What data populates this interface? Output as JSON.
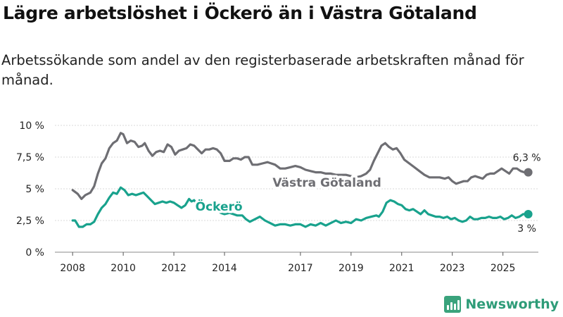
{
  "title": "Lägre arbetslöshet i Öckerö än i Västra Götaland",
  "subtitle": "Arbetssökande som andel av den registerbaserade arbetskraften månad för månad.",
  "brand": "Newsworthy",
  "chart_data": {
    "type": "line",
    "y_ticks": [
      {
        "value": 0,
        "label": "0 %"
      },
      {
        "value": 2.5,
        "label": "2,5 %"
      },
      {
        "value": 5,
        "label": "5 %"
      },
      {
        "value": 7.5,
        "label": "7,5 %"
      },
      {
        "value": 10,
        "label": "10 %"
      }
    ],
    "x_ticks": [
      {
        "value": 2008,
        "label": "2008"
      },
      {
        "value": 2010,
        "label": "2010"
      },
      {
        "value": 2012,
        "label": "2012"
      },
      {
        "value": 2014,
        "label": "2014"
      },
      {
        "value": 2017,
        "label": "2017"
      },
      {
        "value": 2019,
        "label": "2019"
      },
      {
        "value": 2021,
        "label": "2021"
      },
      {
        "value": 2023,
        "label": "2023"
      },
      {
        "value": 2025,
        "label": "2025"
      }
    ],
    "xlim": [
      2007.3,
      2026.4
    ],
    "ylim": [
      0,
      10
    ],
    "series": [
      {
        "name": "Västra Götaland",
        "color": "#6e6e73",
        "end_label": "6,3 %",
        "points": [
          [
            2008.0,
            4.9
          ],
          [
            2008.2,
            4.6
          ],
          [
            2008.35,
            4.2
          ],
          [
            2008.5,
            4.5
          ],
          [
            2008.7,
            4.7
          ],
          [
            2008.85,
            5.2
          ],
          [
            2009.0,
            6.2
          ],
          [
            2009.15,
            7.0
          ],
          [
            2009.3,
            7.4
          ],
          [
            2009.45,
            8.2
          ],
          [
            2009.6,
            8.6
          ],
          [
            2009.75,
            8.8
          ],
          [
            2009.9,
            9.4
          ],
          [
            2010.0,
            9.3
          ],
          [
            2010.15,
            8.6
          ],
          [
            2010.3,
            8.8
          ],
          [
            2010.45,
            8.7
          ],
          [
            2010.6,
            8.3
          ],
          [
            2010.75,
            8.4
          ],
          [
            2010.85,
            8.6
          ],
          [
            2011.0,
            8.0
          ],
          [
            2011.15,
            7.6
          ],
          [
            2011.3,
            7.9
          ],
          [
            2011.45,
            8.0
          ],
          [
            2011.6,
            7.9
          ],
          [
            2011.75,
            8.5
          ],
          [
            2011.9,
            8.3
          ],
          [
            2012.05,
            7.7
          ],
          [
            2012.2,
            8.0
          ],
          [
            2012.35,
            8.1
          ],
          [
            2012.5,
            8.2
          ],
          [
            2012.65,
            8.5
          ],
          [
            2012.8,
            8.4
          ],
          [
            2012.95,
            8.1
          ],
          [
            2013.1,
            7.8
          ],
          [
            2013.25,
            8.1
          ],
          [
            2013.4,
            8.1
          ],
          [
            2013.55,
            8.2
          ],
          [
            2013.7,
            8.1
          ],
          [
            2013.85,
            7.8
          ],
          [
            2014.0,
            7.2
          ],
          [
            2014.2,
            7.2
          ],
          [
            2014.35,
            7.4
          ],
          [
            2014.5,
            7.4
          ],
          [
            2014.65,
            7.3
          ],
          [
            2014.8,
            7.5
          ],
          [
            2014.95,
            7.5
          ],
          [
            2015.1,
            6.9
          ],
          [
            2015.3,
            6.9
          ],
          [
            2015.5,
            7.0
          ],
          [
            2015.7,
            7.1
          ],
          [
            2015.85,
            7.0
          ],
          [
            2016.0,
            6.9
          ],
          [
            2016.2,
            6.6
          ],
          [
            2016.4,
            6.6
          ],
          [
            2016.6,
            6.7
          ],
          [
            2016.8,
            6.8
          ],
          [
            2017.0,
            6.7
          ],
          [
            2017.2,
            6.5
          ],
          [
            2017.4,
            6.4
          ],
          [
            2017.6,
            6.3
          ],
          [
            2017.8,
            6.3
          ],
          [
            2018.0,
            6.2
          ],
          [
            2018.2,
            6.2
          ],
          [
            2018.4,
            6.1
          ],
          [
            2018.6,
            6.1
          ],
          [
            2018.8,
            6.1
          ],
          [
            2019.0,
            6.0
          ],
          [
            2019.2,
            5.9
          ],
          [
            2019.4,
            6.0
          ],
          [
            2019.6,
            6.2
          ],
          [
            2019.75,
            6.5
          ],
          [
            2019.9,
            7.2
          ],
          [
            2020.05,
            7.8
          ],
          [
            2020.2,
            8.4
          ],
          [
            2020.35,
            8.6
          ],
          [
            2020.5,
            8.3
          ],
          [
            2020.65,
            8.1
          ],
          [
            2020.8,
            8.2
          ],
          [
            2020.95,
            7.8
          ],
          [
            2021.1,
            7.3
          ],
          [
            2021.3,
            7.0
          ],
          [
            2021.5,
            6.7
          ],
          [
            2021.7,
            6.4
          ],
          [
            2021.9,
            6.1
          ],
          [
            2022.1,
            5.9
          ],
          [
            2022.3,
            5.9
          ],
          [
            2022.5,
            5.9
          ],
          [
            2022.7,
            5.8
          ],
          [
            2022.85,
            5.9
          ],
          [
            2023.0,
            5.6
          ],
          [
            2023.15,
            5.4
          ],
          [
            2023.3,
            5.5
          ],
          [
            2023.45,
            5.6
          ],
          [
            2023.6,
            5.6
          ],
          [
            2023.75,
            5.9
          ],
          [
            2023.9,
            6.0
          ],
          [
            2024.05,
            5.9
          ],
          [
            2024.2,
            5.8
          ],
          [
            2024.35,
            6.1
          ],
          [
            2024.5,
            6.2
          ],
          [
            2024.65,
            6.2
          ],
          [
            2024.8,
            6.4
          ],
          [
            2024.95,
            6.6
          ],
          [
            2025.1,
            6.4
          ],
          [
            2025.25,
            6.2
          ],
          [
            2025.4,
            6.6
          ],
          [
            2025.55,
            6.6
          ],
          [
            2025.7,
            6.4
          ],
          [
            2025.85,
            6.3
          ],
          [
            2026.0,
            6.3
          ]
        ]
      },
      {
        "name": "Öckerö",
        "color": "#19a28d",
        "end_label": "3 %",
        "points": [
          [
            2008.0,
            2.5
          ],
          [
            2008.1,
            2.5
          ],
          [
            2008.25,
            2.0
          ],
          [
            2008.4,
            2.0
          ],
          [
            2008.55,
            2.2
          ],
          [
            2008.7,
            2.2
          ],
          [
            2008.85,
            2.4
          ],
          [
            2009.0,
            3.0
          ],
          [
            2009.15,
            3.5
          ],
          [
            2009.3,
            3.8
          ],
          [
            2009.45,
            4.3
          ],
          [
            2009.6,
            4.7
          ],
          [
            2009.75,
            4.6
          ],
          [
            2009.9,
            5.1
          ],
          [
            2010.05,
            4.9
          ],
          [
            2010.2,
            4.5
          ],
          [
            2010.35,
            4.6
          ],
          [
            2010.5,
            4.5
          ],
          [
            2010.65,
            4.6
          ],
          [
            2010.8,
            4.7
          ],
          [
            2010.95,
            4.4
          ],
          [
            2011.1,
            4.1
          ],
          [
            2011.25,
            3.8
          ],
          [
            2011.4,
            3.9
          ],
          [
            2011.55,
            4.0
          ],
          [
            2011.7,
            3.9
          ],
          [
            2011.85,
            4.0
          ],
          [
            2012.0,
            3.9
          ],
          [
            2012.15,
            3.7
          ],
          [
            2012.3,
            3.5
          ],
          [
            2012.45,
            3.7
          ],
          [
            2012.6,
            4.2
          ],
          [
            2012.7,
            4.0
          ],
          [
            2012.8,
            4.1
          ],
          [
            2012.95,
            3.7
          ],
          [
            2013.1,
            3.5
          ],
          [
            2013.25,
            3.6
          ],
          [
            2013.4,
            3.5
          ],
          [
            2013.55,
            3.4
          ],
          [
            2013.7,
            3.3
          ],
          [
            2013.85,
            3.1
          ],
          [
            2014.0,
            3.0
          ],
          [
            2014.2,
            3.1
          ],
          [
            2014.35,
            3.0
          ],
          [
            2014.5,
            2.9
          ],
          [
            2014.7,
            2.9
          ],
          [
            2014.85,
            2.6
          ],
          [
            2015.0,
            2.4
          ],
          [
            2015.2,
            2.6
          ],
          [
            2015.4,
            2.8
          ],
          [
            2015.6,
            2.5
          ],
          [
            2015.8,
            2.3
          ],
          [
            2016.0,
            2.1
          ],
          [
            2016.2,
            2.2
          ],
          [
            2016.4,
            2.2
          ],
          [
            2016.6,
            2.1
          ],
          [
            2016.8,
            2.2
          ],
          [
            2017.0,
            2.2
          ],
          [
            2017.2,
            2.0
          ],
          [
            2017.4,
            2.2
          ],
          [
            2017.6,
            2.1
          ],
          [
            2017.8,
            2.3
          ],
          [
            2018.0,
            2.1
          ],
          [
            2018.2,
            2.3
          ],
          [
            2018.4,
            2.5
          ],
          [
            2018.6,
            2.3
          ],
          [
            2018.8,
            2.4
          ],
          [
            2019.0,
            2.3
          ],
          [
            2019.2,
            2.6
          ],
          [
            2019.4,
            2.5
          ],
          [
            2019.6,
            2.7
          ],
          [
            2019.8,
            2.8
          ],
          [
            2020.0,
            2.9
          ],
          [
            2020.1,
            2.8
          ],
          [
            2020.25,
            3.2
          ],
          [
            2020.4,
            3.9
          ],
          [
            2020.55,
            4.1
          ],
          [
            2020.7,
            4.0
          ],
          [
            2020.85,
            3.8
          ],
          [
            2021.0,
            3.7
          ],
          [
            2021.15,
            3.4
          ],
          [
            2021.3,
            3.3
          ],
          [
            2021.45,
            3.4
          ],
          [
            2021.6,
            3.2
          ],
          [
            2021.75,
            3.0
          ],
          [
            2021.9,
            3.3
          ],
          [
            2022.05,
            3.0
          ],
          [
            2022.2,
            2.9
          ],
          [
            2022.35,
            2.8
          ],
          [
            2022.5,
            2.8
          ],
          [
            2022.65,
            2.7
          ],
          [
            2022.8,
            2.8
          ],
          [
            2022.95,
            2.6
          ],
          [
            2023.1,
            2.7
          ],
          [
            2023.25,
            2.5
          ],
          [
            2023.4,
            2.4
          ],
          [
            2023.55,
            2.5
          ],
          [
            2023.7,
            2.8
          ],
          [
            2023.85,
            2.6
          ],
          [
            2024.0,
            2.6
          ],
          [
            2024.15,
            2.7
          ],
          [
            2024.3,
            2.7
          ],
          [
            2024.45,
            2.8
          ],
          [
            2024.6,
            2.7
          ],
          [
            2024.75,
            2.7
          ],
          [
            2024.9,
            2.8
          ],
          [
            2025.05,
            2.6
          ],
          [
            2025.2,
            2.7
          ],
          [
            2025.35,
            2.9
          ],
          [
            2025.5,
            2.7
          ],
          [
            2025.65,
            2.8
          ],
          [
            2025.8,
            3.0
          ],
          [
            2026.0,
            3.0
          ]
        ]
      }
    ]
  }
}
